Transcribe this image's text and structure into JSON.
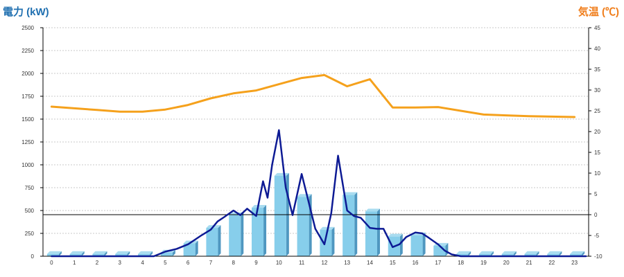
{
  "chart_data": {
    "type": "bar+line",
    "title": "",
    "left_axis": {
      "label": "電力 (kW)",
      "color": "#1f6fb0",
      "range": [
        0,
        2500
      ],
      "ticks": [
        0,
        250,
        500,
        750,
        1000,
        1250,
        1500,
        1750,
        2000,
        2250,
        2500
      ]
    },
    "right_axis": {
      "label": "気温 (℃)",
      "color": "#f07d1a",
      "range": [
        -10,
        45
      ],
      "ticks": [
        -10,
        -5,
        0,
        5,
        10,
        15,
        20,
        25,
        30,
        35,
        40,
        45
      ]
    },
    "x_axis": {
      "categories": [
        "0",
        "1",
        "2",
        "3",
        "4",
        "5",
        "6",
        "7",
        "8",
        "9",
        "10",
        "11",
        "12",
        "13",
        "14",
        "15",
        "16",
        "17",
        "18",
        "19",
        "20",
        "21",
        "22",
        "23"
      ]
    },
    "grid": true,
    "reference_line": {
      "axis": "right",
      "value": 0,
      "color": "#000000"
    },
    "series": [
      {
        "type": "bar",
        "axis": "left",
        "color": "#87ceeb",
        "values": [
          25,
          25,
          25,
          25,
          25,
          40,
          140,
          310,
          450,
          530,
          880,
          650,
          290,
          670,
          490,
          215,
          230,
          115,
          25,
          25,
          25,
          25,
          25,
          25
        ]
      },
      {
        "type": "line",
        "axis": "left",
        "color": "#0d1a94",
        "x": [
          0,
          4.5,
          5,
          5.5,
          6,
          6.3,
          6.6,
          7,
          7.3,
          7.6,
          8,
          8.3,
          8.6,
          9,
          9.3,
          9.5,
          9.7,
          10,
          10.3,
          10.6,
          11,
          11.3,
          11.6,
          12,
          12.3,
          12.6,
          13,
          13.3,
          13.6,
          14,
          14.3,
          14.6,
          15,
          15.3,
          15.6,
          16,
          16.3,
          16.6,
          17,
          17.3,
          17.6,
          18,
          23.5
        ],
        "values": [
          0,
          0,
          50,
          80,
          130,
          180,
          230,
          290,
          380,
          430,
          500,
          450,
          520,
          440,
          820,
          640,
          1000,
          1380,
          750,
          450,
          900,
          600,
          300,
          130,
          470,
          1100,
          500,
          440,
          420,
          310,
          300,
          300,
          100,
          130,
          210,
          260,
          250,
          200,
          130,
          60,
          20,
          0,
          0
        ]
      },
      {
        "type": "line",
        "axis": "right",
        "color": "#f5a11c",
        "values": [
          26,
          25.6,
          25.2,
          24.8,
          24.8,
          25.3,
          26.4,
          28,
          29.2,
          29.9,
          31.4,
          32.9,
          33.6,
          30.9,
          32.6,
          25.8,
          25.8,
          25.9,
          25,
          24.1,
          23.9,
          23.7,
          23.6,
          23.5
        ]
      }
    ]
  }
}
